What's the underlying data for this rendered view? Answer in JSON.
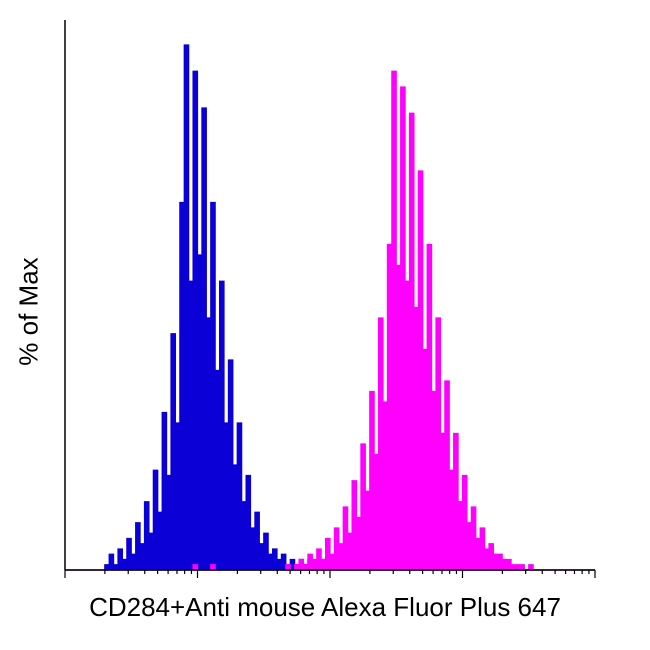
{
  "figure": {
    "background": "#ffffff",
    "axis_color": "#000000",
    "text_color": "#000000"
  },
  "chart_data": {
    "type": "histogram",
    "subtype": "flow-cytometry-overlay",
    "title": "",
    "xlabel": "CD284+Anti mouse Alexa Fluor Plus 647",
    "ylabel": "% of Max",
    "legend": "none",
    "grid": false,
    "x_axis": {
      "scale": "log",
      "decades": 4,
      "tick_labels_visible": false,
      "minor_tick_positions": [
        2,
        3,
        4,
        5,
        6,
        7,
        8,
        9
      ]
    },
    "y_axis": {
      "range": [
        0,
        100
      ],
      "unit": "% of Max",
      "ticks_visible": false
    },
    "bins": 120,
    "series": [
      {
        "name": "blue-histogram",
        "color": "#0b00d6",
        "fill": true,
        "peak_bin": 27,
        "peak_value": 100,
        "values": [
          0,
          0,
          0,
          0,
          0,
          0,
          0,
          0,
          0,
          1,
          3,
          1,
          4,
          2,
          6,
          3,
          9,
          5,
          13,
          7,
          19,
          11,
          30,
          18,
          45,
          28,
          70,
          100,
          55,
          95,
          60,
          88,
          48,
          70,
          38,
          55,
          28,
          40,
          20,
          28,
          13,
          18,
          8,
          11,
          5,
          7,
          3,
          4,
          2,
          3,
          1,
          2,
          1,
          2,
          1,
          2,
          1,
          1,
          2,
          1,
          2,
          1,
          1,
          2,
          1,
          1,
          2,
          1,
          1,
          1,
          2,
          1,
          1,
          1,
          1,
          1,
          2,
          1,
          1,
          5,
          2,
          1,
          1,
          1,
          0,
          1,
          0,
          1,
          0,
          1,
          0,
          0,
          0,
          0,
          0,
          0,
          0,
          0,
          0,
          0,
          0,
          0,
          0,
          0,
          0,
          0,
          0,
          0,
          0,
          0,
          0,
          0,
          0,
          0,
          0,
          0,
          0,
          0,
          0,
          0
        ]
      },
      {
        "name": "magenta-histogram",
        "color": "#ff00ff",
        "fill": true,
        "peak_bin": 74,
        "peak_value": 95,
        "values": [
          0,
          0,
          0,
          0,
          0,
          0,
          0,
          0,
          0,
          0,
          0,
          0,
          0,
          0,
          0,
          0,
          0,
          0,
          0,
          0,
          0,
          0,
          0,
          0,
          0,
          0,
          0,
          0,
          0,
          1,
          0,
          0,
          0,
          1,
          0,
          0,
          0,
          0,
          0,
          0,
          0,
          0,
          0,
          0,
          0,
          0,
          0,
          0,
          0,
          0,
          1,
          0,
          1,
          2,
          1,
          3,
          2,
          4,
          2,
          6,
          3,
          8,
          5,
          12,
          7,
          17,
          10,
          24,
          15,
          34,
          22,
          48,
          32,
          62,
          95,
          58,
          92,
          55,
          87,
          50,
          76,
          42,
          62,
          34,
          48,
          26,
          36,
          19,
          26,
          13,
          18,
          9,
          12,
          6,
          8,
          4,
          5,
          3,
          3,
          2,
          2,
          1,
          1,
          1,
          0,
          1,
          0,
          0,
          0,
          0,
          0,
          0,
          0,
          0,
          0,
          0,
          0,
          0,
          0,
          0
        ]
      }
    ]
  }
}
